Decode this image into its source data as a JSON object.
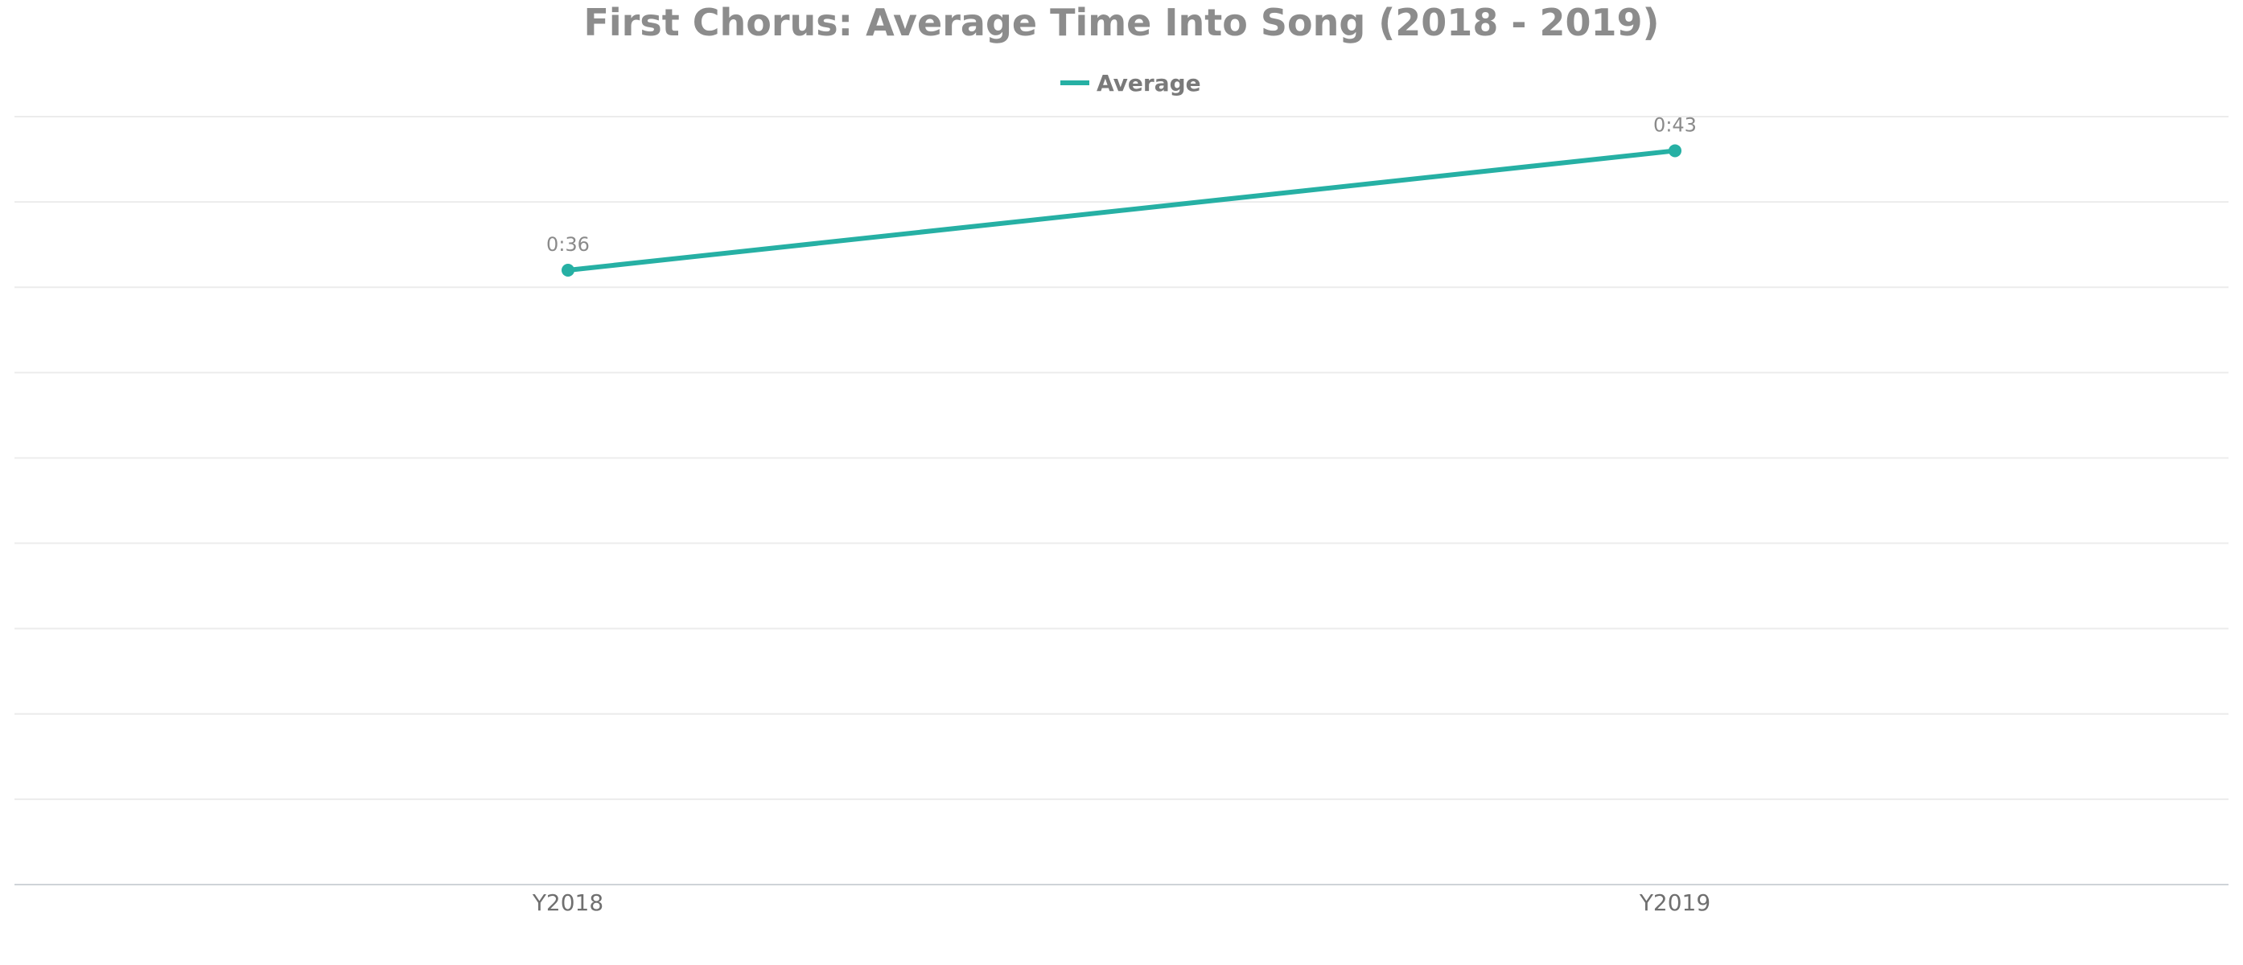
{
  "chart_data": {
    "type": "line",
    "title": "First Chorus: Average Time Into Song (2018 - 2019)",
    "xlabel": "",
    "ylabel": "",
    "categories": [
      "Y2018",
      "Y2019"
    ],
    "series": [
      {
        "name": "Average",
        "values_seconds": [
          36,
          43
        ],
        "labels": [
          "0:36",
          "0:43"
        ],
        "color": "#26b0a4"
      }
    ],
    "ylim_seconds": [
      0,
      45
    ],
    "y_gridlines": 9,
    "grid": true,
    "y_tick_labels_shown": false,
    "legend": {
      "placement": "top-center",
      "entries": [
        "Average"
      ]
    }
  }
}
